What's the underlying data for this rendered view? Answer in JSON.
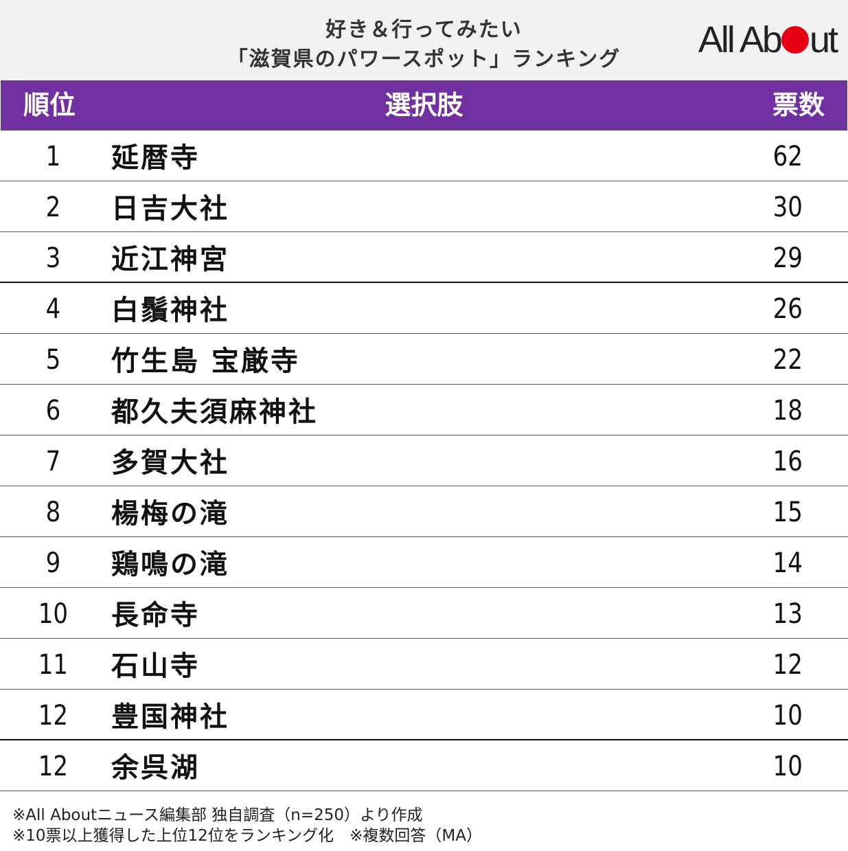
{
  "title": {
    "line1": "好き＆行ってみたい",
    "line2": "「滋賀県のパワースポット」ランキング"
  },
  "logo": {
    "text_before": "All Ab",
    "text_after": "ut",
    "dot_color": "#e60012"
  },
  "colors": {
    "header_bar": "#7030a0",
    "title_band": "#f2f2f2"
  },
  "table": {
    "headers": {
      "rank": "順位",
      "name": "選択肢",
      "votes": "票数"
    },
    "rows": [
      {
        "rank": "1",
        "name": "延暦寺",
        "votes": "62"
      },
      {
        "rank": "2",
        "name": "日吉大社",
        "votes": "30"
      },
      {
        "rank": "3",
        "name": "近江神宮",
        "votes": "29"
      },
      {
        "rank": "4",
        "name": "白鬚神社",
        "votes": "26"
      },
      {
        "rank": "5",
        "name": "竹生島 宝厳寺",
        "votes": "22"
      },
      {
        "rank": "6",
        "name": "都久夫須麻神社",
        "votes": "18"
      },
      {
        "rank": "7",
        "name": "多賀大社",
        "votes": "16"
      },
      {
        "rank": "8",
        "name": "楊梅の滝",
        "votes": "15"
      },
      {
        "rank": "9",
        "name": "鶏鳴の滝",
        "votes": "14"
      },
      {
        "rank": "10",
        "name": "長命寺",
        "votes": "13"
      },
      {
        "rank": "11",
        "name": "石山寺",
        "votes": "12"
      },
      {
        "rank": "12",
        "name": "豊国神社",
        "votes": "10"
      },
      {
        "rank": "12",
        "name": "余呉湖",
        "votes": "10"
      }
    ]
  },
  "notes": {
    "line1": "※All Aboutニュース編集部 独自調査（n=250）より作成",
    "line2": "※10票以上獲得した上位12位をランキング化　※複数回答（MA）"
  }
}
